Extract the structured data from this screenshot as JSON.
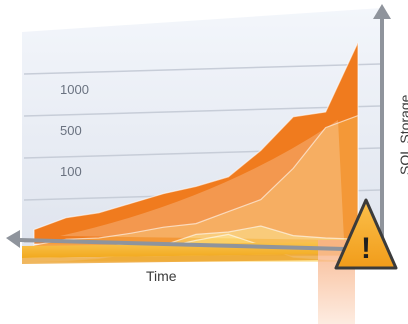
{
  "chart_data": {
    "type": "area",
    "title": "",
    "xlabel": "Time",
    "ylabel": "SQL Storage",
    "y_ticks": [
      "100",
      "500",
      "1000"
    ],
    "grid": true,
    "series": [
      {
        "values": [
          120,
          220,
          260,
          340,
          420,
          480,
          560,
          780,
          1060,
          1100,
          1680
        ],
        "color": "#f07b1e"
      },
      {
        "values": [
          40,
          90,
          100,
          140,
          190,
          220,
          320,
          420,
          680,
          1020,
          1120
        ],
        "color": "#f49a3a"
      },
      {
        "values": [
          0,
          40,
          60,
          110,
          90,
          180,
          200,
          250,
          170,
          150,
          140
        ],
        "color": "#f8c35a"
      },
      {
        "values": [
          0,
          10,
          30,
          70,
          120,
          180,
          230,
          140,
          40,
          20,
          10
        ],
        "color": "#fbd46c"
      }
    ]
  },
  "colors": {
    "axis": "#8f949c",
    "grid_band": "#e8ebf2",
    "warning_fill": "#f6a623",
    "warning_border": "#3b3b3b"
  },
  "icons": {
    "warning": "warning-triangle-icon",
    "arrow_up": "arrow-up-icon",
    "arrow_left": "arrow-left-icon"
  },
  "warning_symbol": "!"
}
